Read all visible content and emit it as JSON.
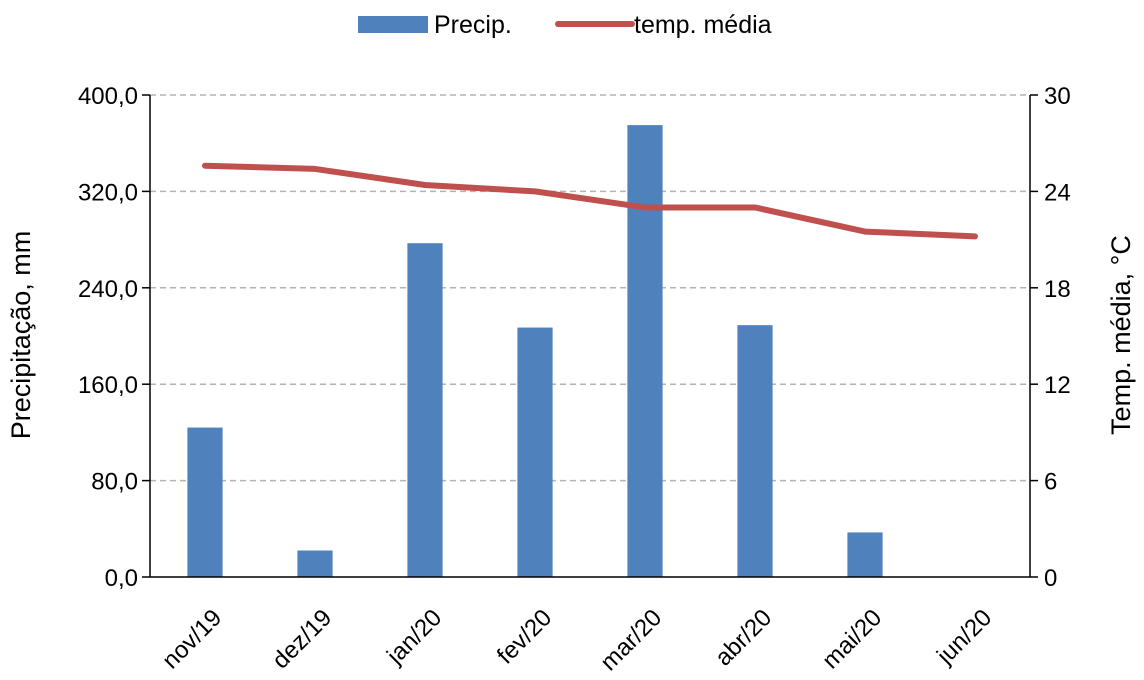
{
  "chart_data": {
    "type": "bar",
    "categories": [
      "nov/19",
      "dez/19",
      "jan/20",
      "fev/20",
      "mar/20",
      "abr/20",
      "mai/20",
      "jun/20"
    ],
    "series": [
      {
        "name": "Precip.",
        "type": "bar",
        "axis": "left",
        "color": "#4F81BD",
        "values": [
          124,
          22,
          277,
          207,
          375,
          209,
          37,
          0
        ]
      },
      {
        "name": "temp. média",
        "type": "line",
        "axis": "right",
        "color": "#C0504D",
        "values": [
          25.6,
          25.4,
          24.4,
          24.0,
          23.0,
          23.0,
          21.5,
          21.2
        ]
      }
    ],
    "ylabel": "Precipitação, mm",
    "y2label": "Temp. média, °C",
    "ylim": [
      0,
      400
    ],
    "y2lim": [
      0,
      30
    ],
    "yticks": [
      "0,0",
      "80,0",
      "160,0",
      "240,0",
      "320,0",
      "400,0"
    ],
    "y2ticks": [
      "0",
      "6",
      "12",
      "18",
      "24",
      "30"
    ],
    "grid": true,
    "legend_position": "top-center"
  }
}
